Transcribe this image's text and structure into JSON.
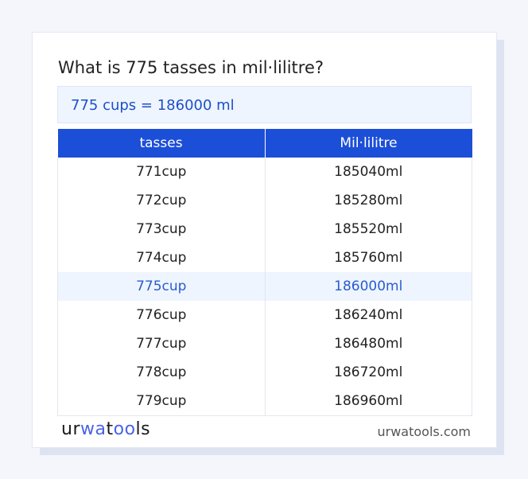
{
  "title": "What is 775 tasses in mil·lilitre?",
  "result": "775 cups = 186000 ml",
  "table": {
    "headers": [
      "tasses",
      "Mil·lilitre"
    ],
    "rows": [
      [
        "771cup",
        "185040ml"
      ],
      [
        "772cup",
        "185280ml"
      ],
      [
        "773cup",
        "185520ml"
      ],
      [
        "774cup",
        "185760ml"
      ],
      [
        "775cup",
        "186000ml"
      ],
      [
        "776cup",
        "186240ml"
      ],
      [
        "777cup",
        "186480ml"
      ],
      [
        "778cup",
        "186720ml"
      ],
      [
        "779cup",
        "186960ml"
      ]
    ],
    "highlighted_row": 4
  },
  "footer": {
    "logo": "urwatools",
    "site": "urwatools.com"
  },
  "colors": {
    "accent": "#1c4fd8",
    "highlight_bg": "#eef5ff"
  }
}
